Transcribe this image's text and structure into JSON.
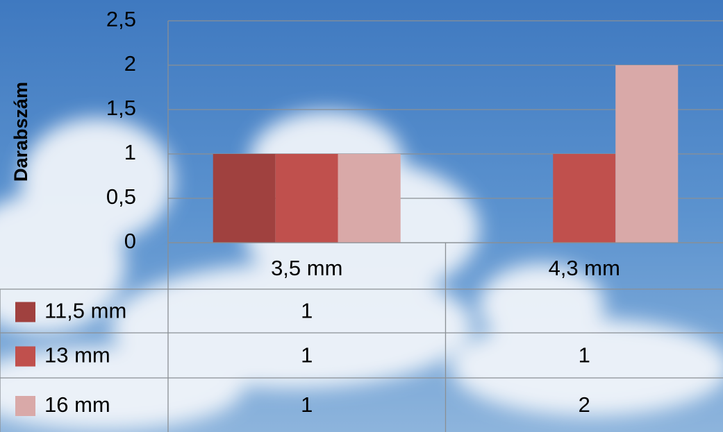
{
  "chart_data": {
    "type": "bar",
    "y_label": "Darabszám",
    "categories": [
      "3,5 mm",
      "4,3 mm"
    ],
    "series": [
      {
        "name": "11,5 mm",
        "color": "#a0413f",
        "values": [
          1,
          null
        ]
      },
      {
        "name": "13 mm",
        "color": "#c0504d",
        "values": [
          1,
          1
        ]
      },
      {
        "name": "16 mm",
        "color": "#d9a9a8",
        "values": [
          1,
          2
        ]
      }
    ],
    "ylim": [
      0,
      2.5
    ],
    "yticks": [
      0,
      {
        "value": 0.5,
        "label": "0,5"
      },
      1,
      {
        "value": 1.5,
        "label": "1,5"
      },
      2,
      {
        "value": 2.5,
        "label": "2,5"
      }
    ],
    "grid": true,
    "data_table": true
  }
}
